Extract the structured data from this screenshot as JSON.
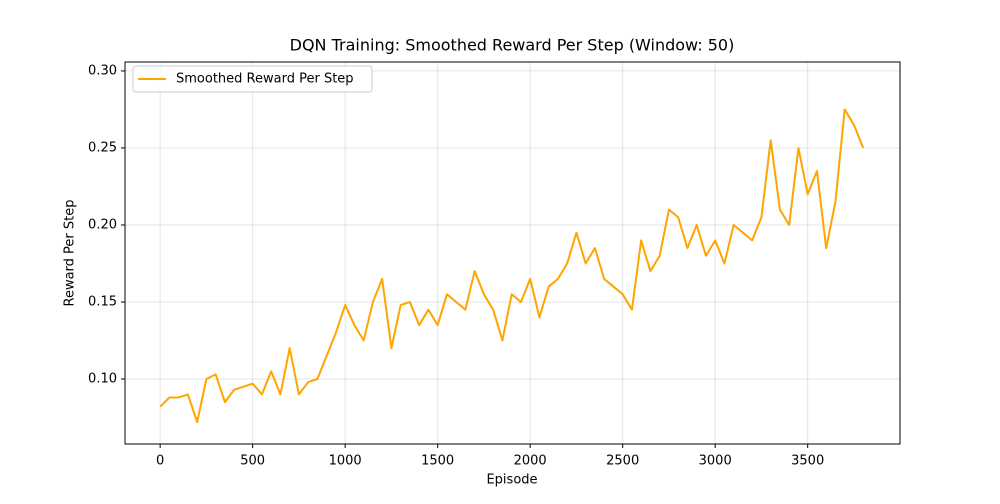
{
  "chart_data": {
    "type": "line",
    "title": "DQN Training: Smoothed Reward Per Step (Window: 50)",
    "xlabel": "Episode",
    "ylabel": "Reward Per Step",
    "x": [
      0,
      50,
      100,
      150,
      200,
      250,
      300,
      350,
      400,
      450,
      500,
      550,
      600,
      650,
      700,
      750,
      800,
      850,
      900,
      950,
      1000,
      1050,
      1100,
      1150,
      1200,
      1250,
      1300,
      1350,
      1400,
      1450,
      1500,
      1550,
      1600,
      1650,
      1700,
      1750,
      1800,
      1850,
      1900,
      1950,
      2000,
      2050,
      2100,
      2150,
      2200,
      2250,
      2300,
      2350,
      2400,
      2450,
      2500,
      2550,
      2600,
      2650,
      2700,
      2750,
      2800,
      2850,
      2900,
      2950,
      3000,
      3050,
      3100,
      3150,
      3200,
      3250,
      3300,
      3350,
      3400,
      3450,
      3500,
      3550,
      3600,
      3650,
      3700,
      3750,
      3800
    ],
    "series": [
      {
        "name": "Smoothed Reward Per Step",
        "color": "#ffa500",
        "values": [
          0.082,
          0.088,
          0.088,
          0.09,
          0.072,
          0.1,
          0.103,
          0.085,
          0.093,
          0.095,
          0.097,
          0.09,
          0.105,
          0.09,
          0.12,
          0.09,
          0.098,
          0.1,
          0.115,
          0.13,
          0.148,
          0.135,
          0.125,
          0.15,
          0.165,
          0.12,
          0.148,
          0.15,
          0.135,
          0.145,
          0.135,
          0.155,
          0.15,
          0.145,
          0.17,
          0.155,
          0.145,
          0.125,
          0.155,
          0.15,
          0.165,
          0.14,
          0.16,
          0.165,
          0.175,
          0.195,
          0.175,
          0.185,
          0.165,
          0.16,
          0.155,
          0.145,
          0.19,
          0.17,
          0.18,
          0.21,
          0.205,
          0.185,
          0.2,
          0.18,
          0.19,
          0.175,
          0.2,
          0.195,
          0.19,
          0.205,
          0.255,
          0.21,
          0.2,
          0.25,
          0.22,
          0.235,
          0.185,
          0.215,
          0.275,
          0.265,
          0.25
        ]
      }
    ],
    "xlim": [
      -190,
      3999
    ],
    "xticks": [
      0,
      500,
      1000,
      1500,
      2000,
      2500,
      3000,
      3500
    ],
    "ylim": [
      0.0578,
      0.3058
    ],
    "yticks": [
      {
        "value": 0.1,
        "label": "0.10"
      },
      {
        "value": 0.15,
        "label": "0.15"
      },
      {
        "value": 0.2,
        "label": "0.20"
      },
      {
        "value": 0.25,
        "label": "0.25"
      },
      {
        "value": 0.3,
        "label": "0.30"
      }
    ],
    "grid": true,
    "legend": "upper left"
  }
}
